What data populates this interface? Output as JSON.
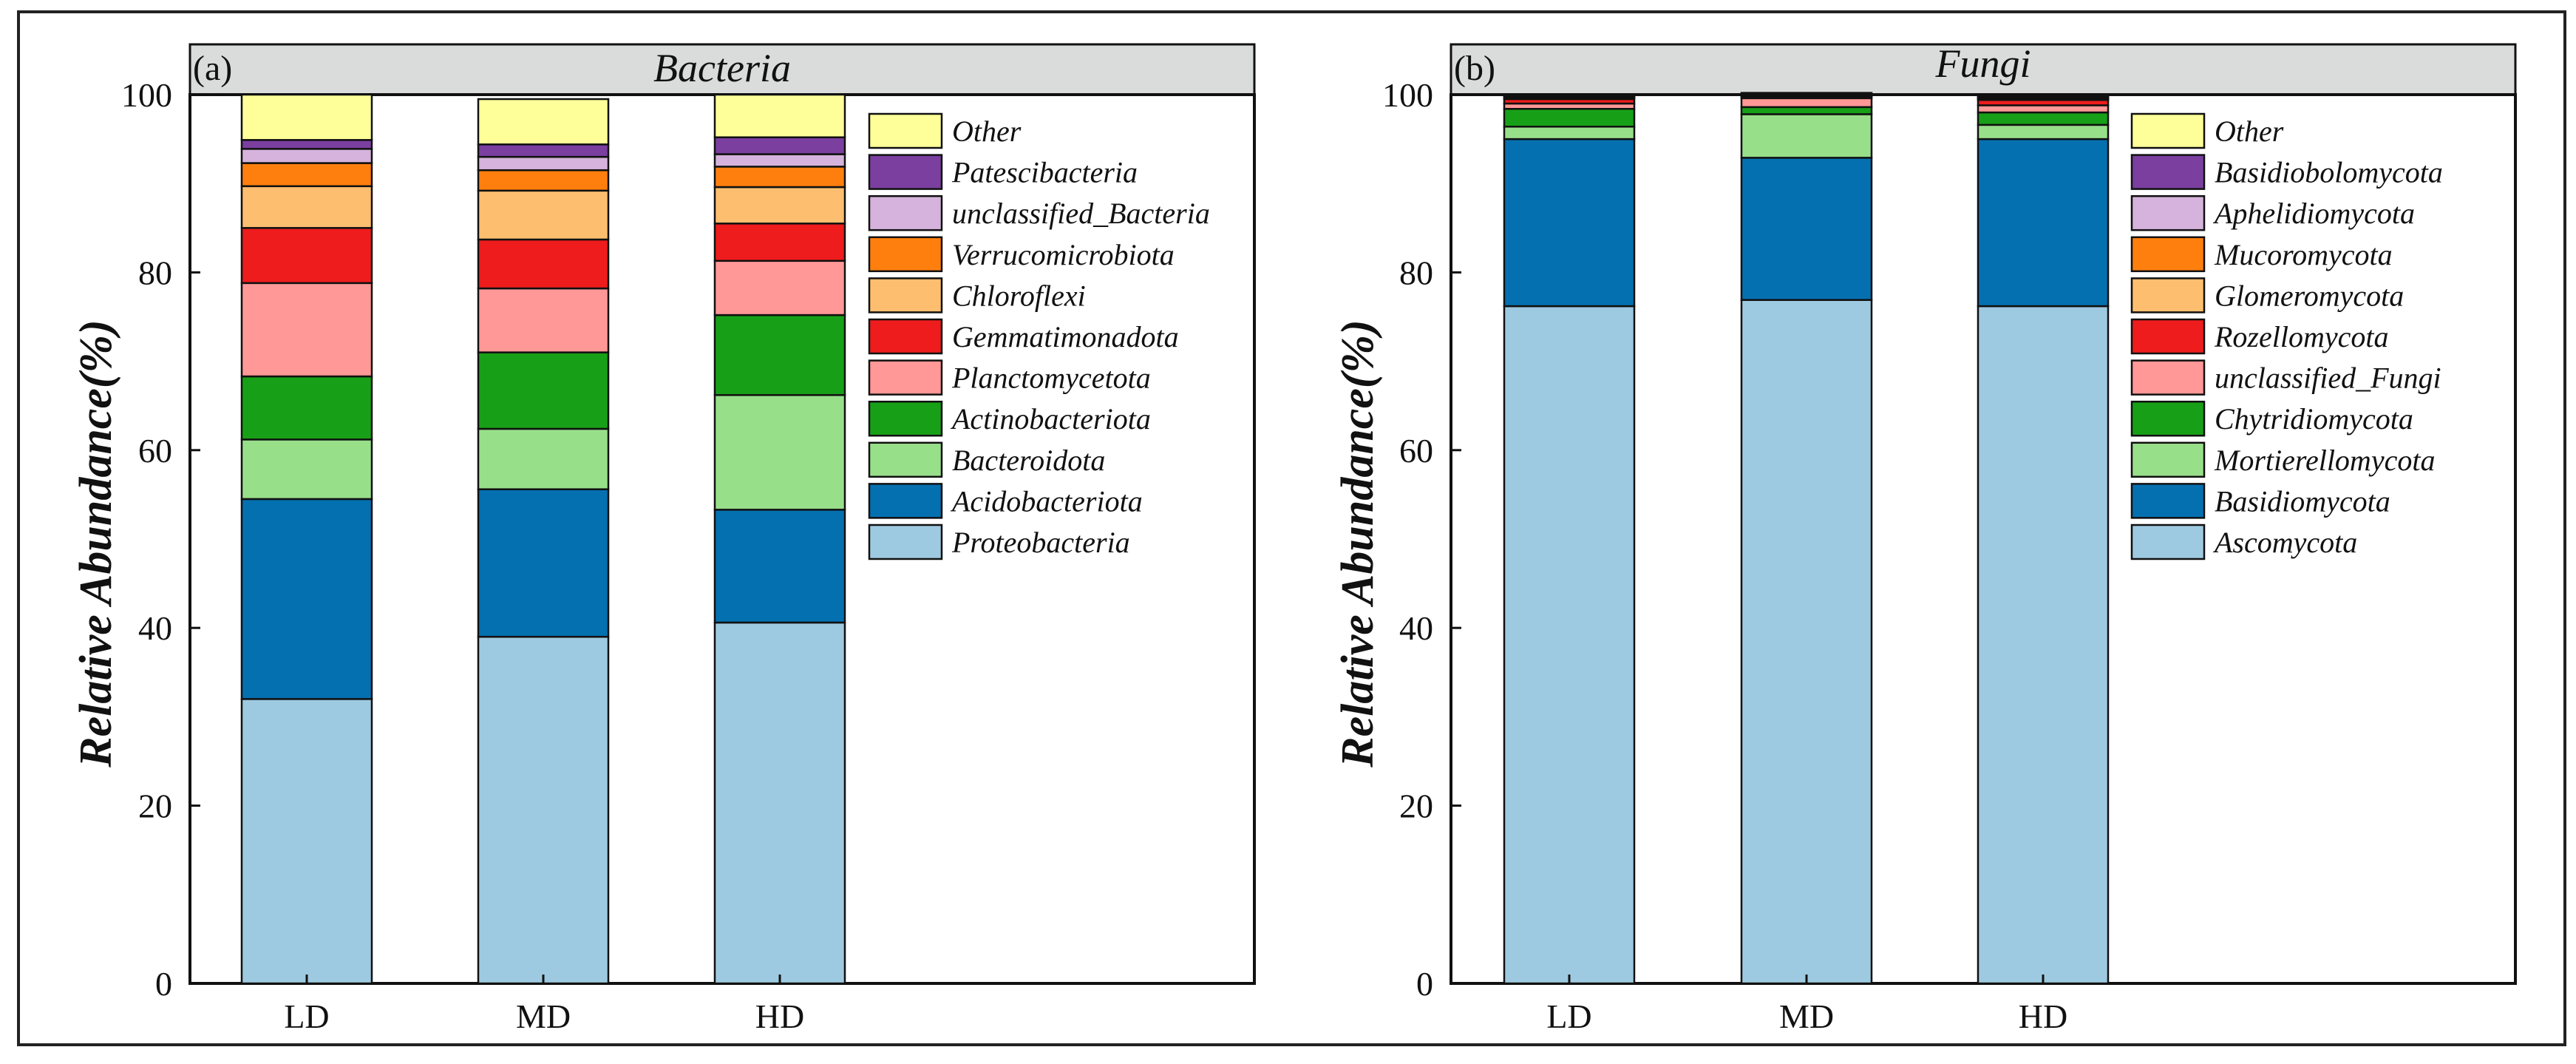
{
  "chart_data": [
    {
      "type": "bar",
      "stacked": true,
      "panel_label": "(a)",
      "title": "Bacteria",
      "xlabel": "",
      "ylabel": "Relative Abundance(%)",
      "ylim": [
        0,
        100
      ],
      "yticks": [
        "0",
        "20",
        "40",
        "60",
        "80",
        "100"
      ],
      "categories": [
        "LD",
        "MD",
        "HD"
      ],
      "legend_position": "top-right",
      "series": [
        {
          "name": "Proteobacteria",
          "color": "#9ecae1",
          "values": [
            32.0,
            39.0,
            40.6
          ]
        },
        {
          "name": "Acidobacteriota",
          "color": "#0570b0",
          "values": [
            22.5,
            16.6,
            12.7
          ]
        },
        {
          "name": "Bacteroidota",
          "color": "#98df8a",
          "values": [
            6.7,
            6.8,
            12.9
          ]
        },
        {
          "name": "Actinobacteriota",
          "color": "#17a017",
          "values": [
            7.1,
            8.6,
            9.0
          ]
        },
        {
          "name": "Planctomycetota",
          "color": "#ff9896",
          "values": [
            10.5,
            7.2,
            6.1
          ]
        },
        {
          "name": "Gemmatimonadota",
          "color": "#ee1c1c",
          "values": [
            6.2,
            5.5,
            4.2
          ]
        },
        {
          "name": "Chloroflexi",
          "color": "#fdbf6f",
          "values": [
            4.7,
            5.5,
            4.1
          ]
        },
        {
          "name": "Verrucomicrobiota",
          "color": "#ff7f0e",
          "values": [
            2.6,
            2.3,
            2.3
          ]
        },
        {
          "name": "unclassified_Bacteria",
          "color": "#d5b3dc",
          "values": [
            1.6,
            1.5,
            1.4
          ]
        },
        {
          "name": "Patescibacteria",
          "color": "#7b3fa0",
          "values": [
            1.0,
            1.4,
            1.9
          ]
        },
        {
          "name": "Other",
          "color": "#ffff99",
          "values": [
            5.1,
            5.1,
            4.8
          ]
        }
      ]
    },
    {
      "type": "bar",
      "stacked": true,
      "panel_label": "(b)",
      "title": "Fungi",
      "xlabel": "",
      "ylabel": "Relative Abundance(%)",
      "ylim": [
        0,
        100
      ],
      "yticks": [
        "0",
        "20",
        "40",
        "60",
        "80",
        "100"
      ],
      "categories": [
        "LD",
        "MD",
        "HD"
      ],
      "legend_position": "top-right",
      "series": [
        {
          "name": "Ascomycota",
          "color": "#9ecae1",
          "values": [
            76.2,
            76.9,
            76.2
          ]
        },
        {
          "name": "Basidiomycota",
          "color": "#0570b0",
          "values": [
            18.8,
            16.0,
            18.8
          ]
        },
        {
          "name": "Mortierellomycota",
          "color": "#98df8a",
          "values": [
            1.4,
            4.9,
            1.6
          ]
        },
        {
          "name": "Chytridiomycota",
          "color": "#17a017",
          "values": [
            2.0,
            0.8,
            1.4
          ]
        },
        {
          "name": "unclassified_Fungi",
          "color": "#ff9896",
          "values": [
            0.6,
            1.0,
            0.8
          ]
        },
        {
          "name": "Rozellomycota",
          "color": "#ee1c1c",
          "values": [
            0.5,
            0.1,
            0.6
          ]
        },
        {
          "name": "Glomeromycota",
          "color": "#fdbf6f",
          "values": [
            0.1,
            0.1,
            0.1
          ]
        },
        {
          "name": "Mucoromycota",
          "color": "#ff7f0e",
          "values": [
            0.1,
            0.1,
            0.1
          ]
        },
        {
          "name": "Aphelidiomycota",
          "color": "#d5b3dc",
          "values": [
            0.1,
            0.1,
            0.1
          ]
        },
        {
          "name": "Basidiobolomycota",
          "color": "#7b3fa0",
          "values": [
            0.1,
            0.1,
            0.1
          ]
        },
        {
          "name": "Other",
          "color": "#ffff99",
          "values": [
            0.1,
            0.1,
            0.1
          ]
        }
      ]
    }
  ]
}
